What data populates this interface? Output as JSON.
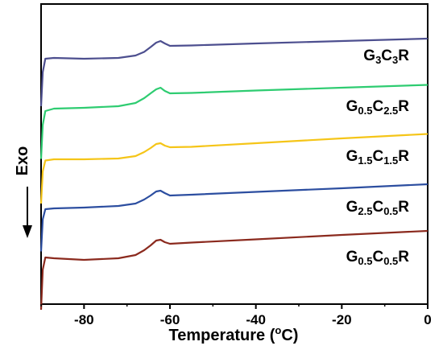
{
  "chart_data": {
    "type": "line",
    "title": "",
    "xlabel_parts": [
      "Temperature (",
      "o",
      "C)"
    ],
    "ylabel": "Exo",
    "xlim": [
      -90,
      0
    ],
    "xticks": [
      -80,
      -60,
      -40,
      -20,
      0
    ],
    "xtick_labels": [
      "-80",
      "-60",
      "-40",
      "-20",
      "0"
    ],
    "grid": false,
    "y_ticks_shown": false,
    "curve_x": [
      -90,
      -89.6,
      -89.0,
      -87,
      -80,
      -72,
      -68,
      -66,
      -64.5,
      -63.2,
      -62.2,
      -61.2,
      -60,
      -55,
      -40,
      -20,
      0
    ],
    "series": [
      {
        "name": "G3C3R",
        "label_parts": [
          [
            "G",
            ""
          ],
          [
            "3",
            "sub"
          ],
          [
            "C",
            ""
          ],
          [
            "3",
            "sub"
          ],
          [
            "R",
            ""
          ]
        ],
        "color": "#4d4f8f",
        "values": [
          -1.2,
          -0.35,
          -0.02,
          0.0,
          -0.02,
          0.0,
          0.06,
          0.15,
          0.27,
          0.38,
          0.42,
          0.36,
          0.3,
          0.31,
          0.36,
          0.42,
          0.48
        ]
      },
      {
        "name": "G0.5C2.5R",
        "label_parts": [
          [
            "G",
            ""
          ],
          [
            "0.5",
            "sub"
          ],
          [
            "C",
            ""
          ],
          [
            "2.5",
            "sub"
          ],
          [
            "R",
            ""
          ]
        ],
        "color": "#2ecc71",
        "values": [
          -1.25,
          -0.4,
          -0.06,
          0.0,
          0.02,
          0.06,
          0.14,
          0.26,
          0.38,
          0.48,
          0.52,
          0.44,
          0.38,
          0.39,
          0.45,
          0.52,
          0.59
        ]
      },
      {
        "name": "G1.5C1.5R",
        "label_parts": [
          [
            "G",
            ""
          ],
          [
            "1.5",
            "sub"
          ],
          [
            "C",
            ""
          ],
          [
            "1.5",
            "sub"
          ],
          [
            "R",
            ""
          ]
        ],
        "color": "#f5c518",
        "values": [
          -1.1,
          -0.3,
          -0.03,
          0.0,
          0.0,
          0.02,
          0.08,
          0.18,
          0.28,
          0.38,
          0.4,
          0.34,
          0.3,
          0.31,
          0.4,
          0.52,
          0.63
        ]
      },
      {
        "name": "G2.5C0.5R",
        "label_parts": [
          [
            "G",
            ""
          ],
          [
            "2.5",
            "sub"
          ],
          [
            "C",
            ""
          ],
          [
            "0.5",
            "sub"
          ],
          [
            "R",
            ""
          ]
        ],
        "color": "#2c4ea0",
        "values": [
          -1.05,
          -0.25,
          0.0,
          0.02,
          0.04,
          0.08,
          0.14,
          0.24,
          0.34,
          0.44,
          0.46,
          0.4,
          0.34,
          0.36,
          0.43,
          0.52,
          0.62
        ]
      },
      {
        "name": "G0.5C0.5R",
        "label_parts": [
          [
            "G",
            ""
          ],
          [
            "0.5",
            "sub"
          ],
          [
            "C",
            ""
          ],
          [
            "0.5",
            "sub"
          ],
          [
            "R",
            ""
          ]
        ],
        "color": "#8b2a1e",
        "values": [
          -1.3,
          -0.3,
          0.0,
          -0.02,
          -0.06,
          -0.02,
          0.06,
          0.18,
          0.3,
          0.42,
          0.44,
          0.38,
          0.34,
          0.37,
          0.45,
          0.56,
          0.66
        ]
      }
    ]
  }
}
